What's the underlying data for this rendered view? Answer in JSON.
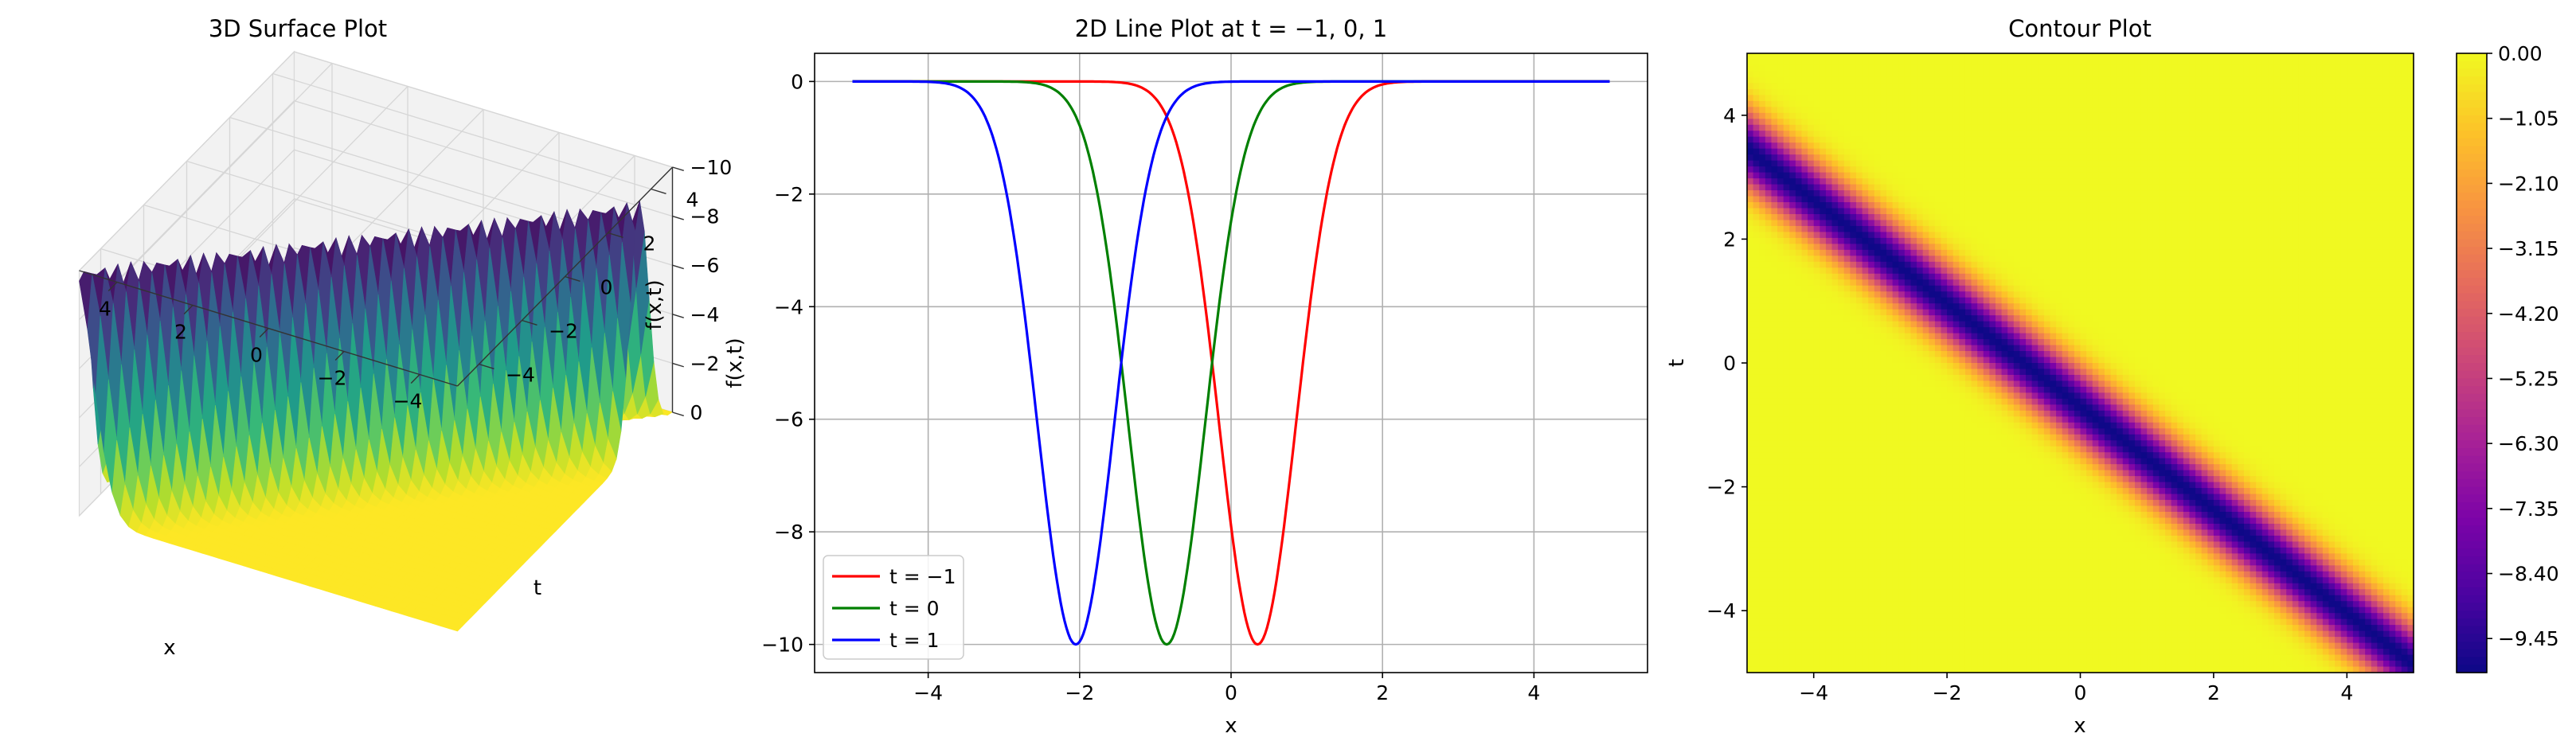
{
  "chart_data": [
    {
      "type": "surface",
      "title": "3D Surface Plot",
      "xlabel": "x",
      "ylabel": "t",
      "zlabel": "f(x,t)",
      "xlim": [
        -5,
        5
      ],
      "ylim": [
        -5,
        5
      ],
      "zlim": [
        -10,
        0
      ],
      "xticks": [
        -4,
        -2,
        0,
        2,
        4
      ],
      "yticks": [
        -4,
        -2,
        0,
        2,
        4
      ],
      "zticks": [
        0,
        -2,
        -4,
        -6,
        -8,
        -10
      ],
      "colormap": "viridis",
      "function": {
        "amplitude": -10,
        "center_offset": -0.85,
        "slope": -1.2,
        "width": 0.72
      },
      "grid": true
    },
    {
      "type": "line",
      "title": "2D Line Plot at t = −1, 0, 1",
      "xlabel": "x",
      "ylabel": "f(x,t)",
      "xlim": [
        -5.5,
        5.5
      ],
      "ylim": [
        -10.5,
        0.5
      ],
      "xticks": [
        -4,
        -2,
        0,
        2,
        4
      ],
      "yticks": [
        0,
        -2,
        -4,
        -6,
        -8,
        -10
      ],
      "grid": true,
      "legend_position": "lower-left",
      "series": [
        {
          "name": "t = −1",
          "color": "#ff0000",
          "t": -1,
          "min_at": 0.35,
          "min_value": -10
        },
        {
          "name": "t = 0",
          "color": "#008000",
          "t": 0,
          "min_at": -0.85,
          "min_value": -10
        },
        {
          "name": "t = 1",
          "color": "#0000ff",
          "t": 1,
          "min_at": -2.05,
          "min_value": -10
        }
      ]
    },
    {
      "type": "heatmap",
      "title": "Contour Plot",
      "xlabel": "x",
      "ylabel": "t",
      "xlim": [
        -5,
        5
      ],
      "ylim": [
        -5,
        5
      ],
      "xticks": [
        -4,
        -2,
        0,
        2,
        4
      ],
      "yticks": [
        4,
        2,
        0,
        -2,
        -4
      ],
      "colormap": "plasma",
      "colorbar_ticks": [
        "0.00",
        "−1.05",
        "−2.10",
        "−3.15",
        "−4.20",
        "−5.25",
        "−6.30",
        "−7.35",
        "−8.40",
        "−9.45"
      ],
      "colorbar_range": [
        -10,
        0
      ]
    }
  ]
}
